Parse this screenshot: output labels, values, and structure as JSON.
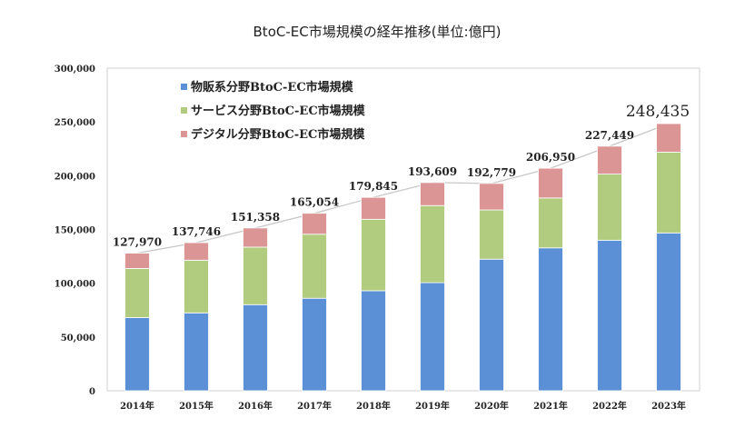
{
  "chart_data": {
    "type": "bar",
    "stacked": true,
    "title": "BtoC-EC市場規模の経年推移(単位:億円)",
    "categories": [
      "2014年",
      "2015年",
      "2016年",
      "2017年",
      "2018年",
      "2019年",
      "2020年",
      "2021年",
      "2022年",
      "2023年"
    ],
    "series": [
      {
        "name": "物販系分野BtoC-EC市場規模",
        "color": "#5b8fd6",
        "values": [
          68043,
          72398,
          80043,
          86008,
          92992,
          100515,
          122333,
          132865,
          139997,
          146760
        ]
      },
      {
        "name": "サービス分野BtoC-EC市場規模",
        "color": "#b1cc7f",
        "values": [
          45684,
          49014,
          53532,
          59568,
          66471,
          71672,
          45832,
          46424,
          61477,
          75169
        ]
      },
      {
        "name": "デジタル分野BtoC-EC市場規模",
        "color": "#dc9595",
        "values": [
          14243,
          16334,
          17782,
          19478,
          20382,
          21422,
          24614,
          27661,
          25974,
          26506
        ]
      }
    ],
    "totals": [
      "127,970",
      "137,746",
      "151,358",
      "165,054",
      "179,845",
      "193,609",
      "192,779",
      "206,950",
      "227,449",
      "248,435"
    ],
    "yticks": [
      "0",
      "50,000",
      "100,000",
      "150,000",
      "200,000",
      "250,000",
      "300,000"
    ],
    "ylim": [
      0,
      300000
    ],
    "legend_position": "top-left",
    "grid": false,
    "total_line_color": "#c8c8c8"
  }
}
